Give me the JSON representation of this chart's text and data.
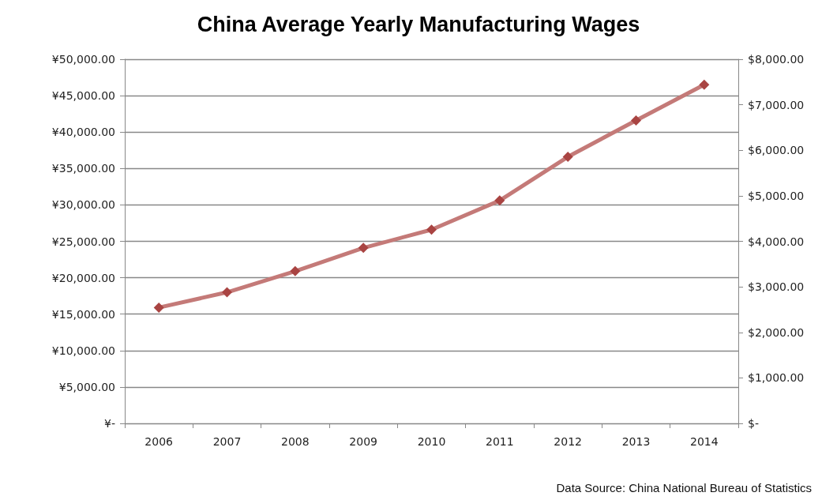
{
  "chart_data": {
    "type": "line",
    "title": "China Average Yearly Manufacturing Wages",
    "categories": [
      "2006",
      "2007",
      "2008",
      "2009",
      "2010",
      "2011",
      "2012",
      "2013",
      "2014"
    ],
    "series": [
      {
        "color": "#c47a78",
        "values": [
          15900,
          18000,
          20900,
          24100,
          26600,
          30600,
          36600,
          41600,
          46500
        ]
      }
    ],
    "ylim": [
      0,
      50000
    ],
    "yticks": [
      {
        "value": 0,
        "label": "¥-"
      },
      {
        "value": 5000,
        "label": "¥5,000.00"
      },
      {
        "value": 10000,
        "label": "¥10,000.00"
      },
      {
        "value": 15000,
        "label": "¥15,000.00"
      },
      {
        "value": 20000,
        "label": "¥20,000.00"
      },
      {
        "value": 25000,
        "label": "¥25,000.00"
      },
      {
        "value": 30000,
        "label": "¥30,000.00"
      },
      {
        "value": 35000,
        "label": "¥35,000.00"
      },
      {
        "value": 40000,
        "label": "¥40,000.00"
      },
      {
        "value": 45000,
        "label": "¥45,000.00"
      },
      {
        "value": 50000,
        "label": "¥50,000.00"
      }
    ],
    "y2lim": [
      0,
      8000
    ],
    "y2ticks": [
      {
        "value": 0,
        "label": "$-"
      },
      {
        "value": 1000,
        "label": "$1,000.00"
      },
      {
        "value": 2000,
        "label": "$2,000.00"
      },
      {
        "value": 3000,
        "label": "$3,000.00"
      },
      {
        "value": 4000,
        "label": "$4,000.00"
      },
      {
        "value": 5000,
        "label": "$5,000.00"
      },
      {
        "value": 6000,
        "label": "$6,000.00"
      },
      {
        "value": 7000,
        "label": "$7,000.00"
      },
      {
        "value": 8000,
        "label": "$8,000.00"
      }
    ],
    "annotations": [
      "Data Source: China National Bureau of Statistics"
    ],
    "grid": "y",
    "marker": "diamond",
    "line_style": "solid"
  }
}
